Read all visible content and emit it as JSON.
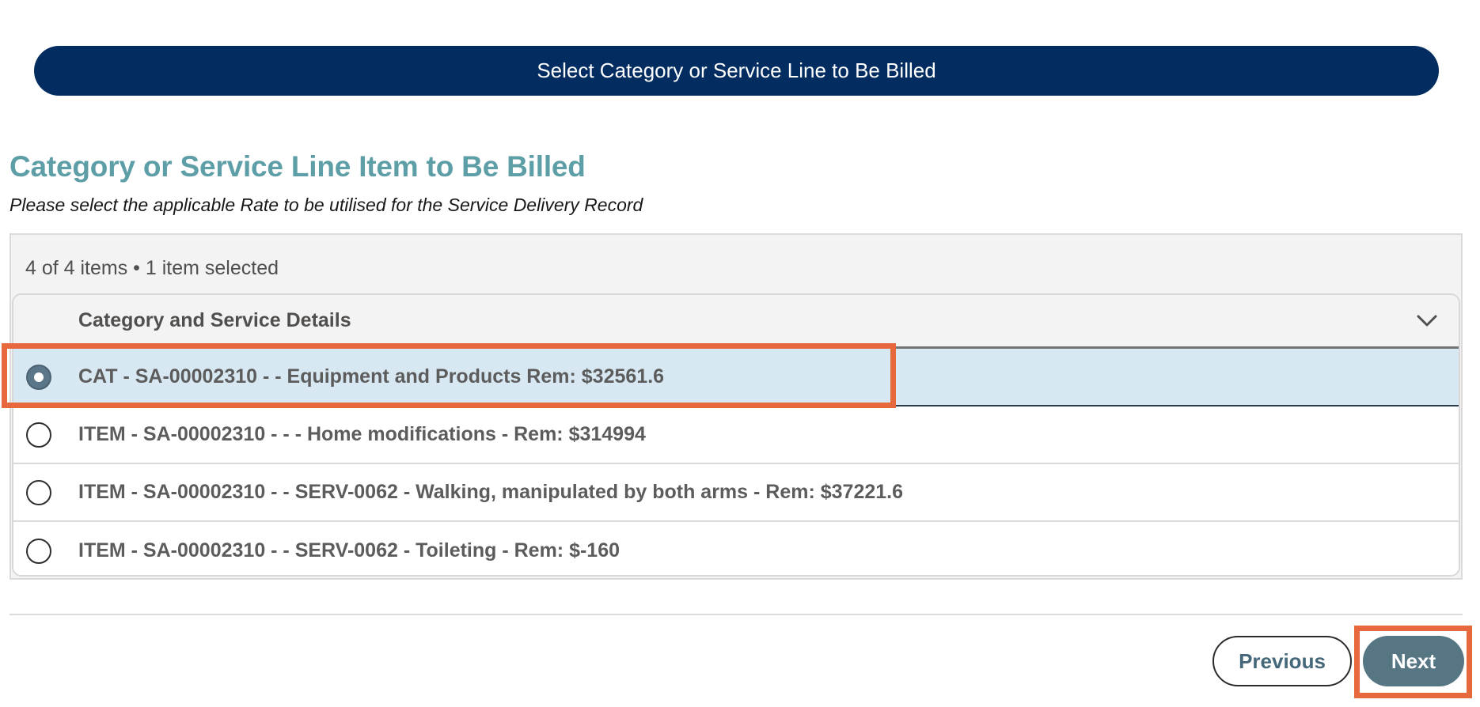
{
  "banner": {
    "title": "Select Category or Service Line to Be Billed"
  },
  "section": {
    "heading": "Category or Service Line Item to Be Billed",
    "instruction": "Please select the applicable Rate to be utilised for the Service Delivery Record"
  },
  "list": {
    "count_text": "4 of 4 items • 1 item selected",
    "column_header": "Category and Service Details",
    "rows": [
      {
        "label": "CAT - SA-00002310 - - Equipment and Products Rem: $32561.6",
        "selected": true
      },
      {
        "label": "ITEM - SA-00002310 - - - Home modifications - Rem: $314994",
        "selected": false
      },
      {
        "label": "ITEM - SA-00002310 - - SERV-0062 - Walking, manipulated by both arms - Rem: $37221.6",
        "selected": false
      },
      {
        "label": "ITEM - SA-00002310 - - SERV-0062 - Toileting - Rem: $-160",
        "selected": false
      }
    ]
  },
  "footer": {
    "previous_label": "Previous",
    "next_label": "Next"
  },
  "colors": {
    "banner": "#032d60",
    "heading": "#5d9ea7",
    "selected_row": "#d8e8f2",
    "next_button": "#567683",
    "highlight": "#e8683d"
  },
  "icons": {
    "column_toggle": "chevron-down-icon"
  }
}
